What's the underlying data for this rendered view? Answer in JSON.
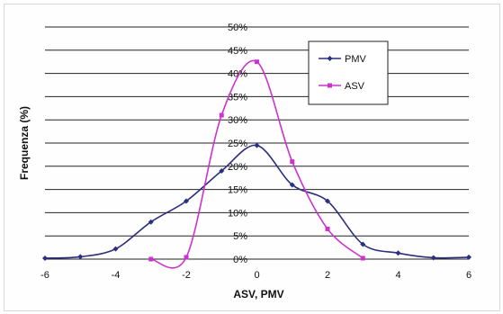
{
  "chart_data": {
    "type": "line",
    "title": "",
    "xlabel": "ASV, PMV",
    "ylabel": "Frequenza (%)",
    "xlim": [
      -6,
      6
    ],
    "ylim": [
      0,
      50
    ],
    "x_ticks": [
      "-6",
      "-4",
      "-2",
      "0",
      "2",
      "4",
      "6"
    ],
    "y_ticks": [
      "0%",
      "5%",
      "10%",
      "15%",
      "20%",
      "25%",
      "30%",
      "35%",
      "40%",
      "45%",
      "50%"
    ],
    "grid": "horizontal",
    "legend_position": "top-right",
    "series": [
      {
        "name": "PMV",
        "color": "#2b2f7e",
        "marker": "diamond",
        "points": [
          {
            "x": -6,
            "y": 0.2
          },
          {
            "x": -5,
            "y": 0.5
          },
          {
            "x": -4,
            "y": 2.2
          },
          {
            "x": -3,
            "y": 8
          },
          {
            "x": -2,
            "y": 12.5
          },
          {
            "x": -1,
            "y": 19
          },
          {
            "x": 0,
            "y": 24.5
          },
          {
            "x": 1,
            "y": 16
          },
          {
            "x": 2,
            "y": 12.5
          },
          {
            "x": 3,
            "y": 3.2
          },
          {
            "x": 4,
            "y": 1.3
          },
          {
            "x": 5,
            "y": 0.3
          },
          {
            "x": 6,
            "y": 0.4
          }
        ]
      },
      {
        "name": "ASV",
        "color": "#cc33cc",
        "marker": "square",
        "points": [
          {
            "x": -3,
            "y": 0
          },
          {
            "x": -2,
            "y": 0.4
          },
          {
            "x": -1,
            "y": 31
          },
          {
            "x": 0,
            "y": 42.5
          },
          {
            "x": 1,
            "y": 21
          },
          {
            "x": 2,
            "y": 6.5
          },
          {
            "x": 3,
            "y": 0.2
          }
        ]
      }
    ]
  }
}
